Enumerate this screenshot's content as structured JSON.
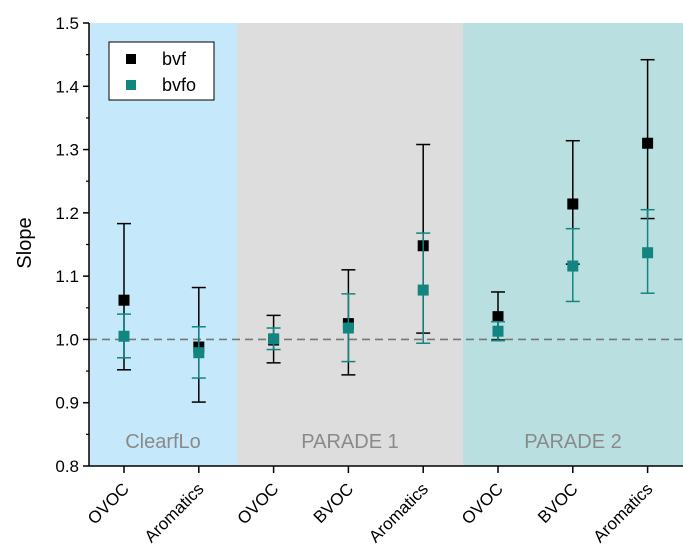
{
  "chart_data": {
    "type": "scatter",
    "title": "",
    "xlabel": "",
    "ylabel": "Slope",
    "ylim": [
      0.8,
      1.5
    ],
    "yticks": [
      "0.8",
      "0.9",
      "1.0",
      "1.1",
      "1.2",
      "1.3",
      "1.4",
      "1.5"
    ],
    "categories": [
      "OVOC",
      "Aromatics",
      "OVOC",
      "BVOC",
      "Aromatics",
      "OVOC",
      "BVOC",
      "Aromatics"
    ],
    "regions": [
      {
        "label": "ClearfLo",
        "from": 0,
        "to": 1,
        "color": "#c6e8fb"
      },
      {
        "label": "PARADE 1",
        "from": 2,
        "to": 4,
        "color": "#dddddd"
      },
      {
        "label": "PARADE 2",
        "from": 5,
        "to": 7,
        "color": "#b9dfe0"
      }
    ],
    "reference_line": {
      "y": 1.0,
      "style": "dashed",
      "color": "#777777"
    },
    "series": [
      {
        "name": "bvf",
        "color": "#000000",
        "values": [
          1.062,
          0.988,
          0.999,
          1.025,
          1.148,
          1.036,
          1.214,
          1.31
        ],
        "err_low": [
          0.952,
          0.901,
          0.963,
          0.944,
          1.01,
          0.999,
          1.119,
          1.191
        ],
        "err_high": [
          1.183,
          1.082,
          1.038,
          1.11,
          1.308,
          1.075,
          1.314,
          1.442
        ]
      },
      {
        "name": "bvfo",
        "color": "#138580",
        "values": [
          1.005,
          0.979,
          1.001,
          1.018,
          1.078,
          1.013,
          1.116,
          1.137
        ],
        "err_low": [
          0.971,
          0.939,
          0.984,
          0.965,
          0.994,
          0.998,
          1.06,
          1.073
        ],
        "err_high": [
          1.04,
          1.02,
          1.018,
          1.072,
          1.168,
          1.028,
          1.175,
          1.205
        ]
      }
    ],
    "legend_position": "top-left",
    "grid": false
  }
}
